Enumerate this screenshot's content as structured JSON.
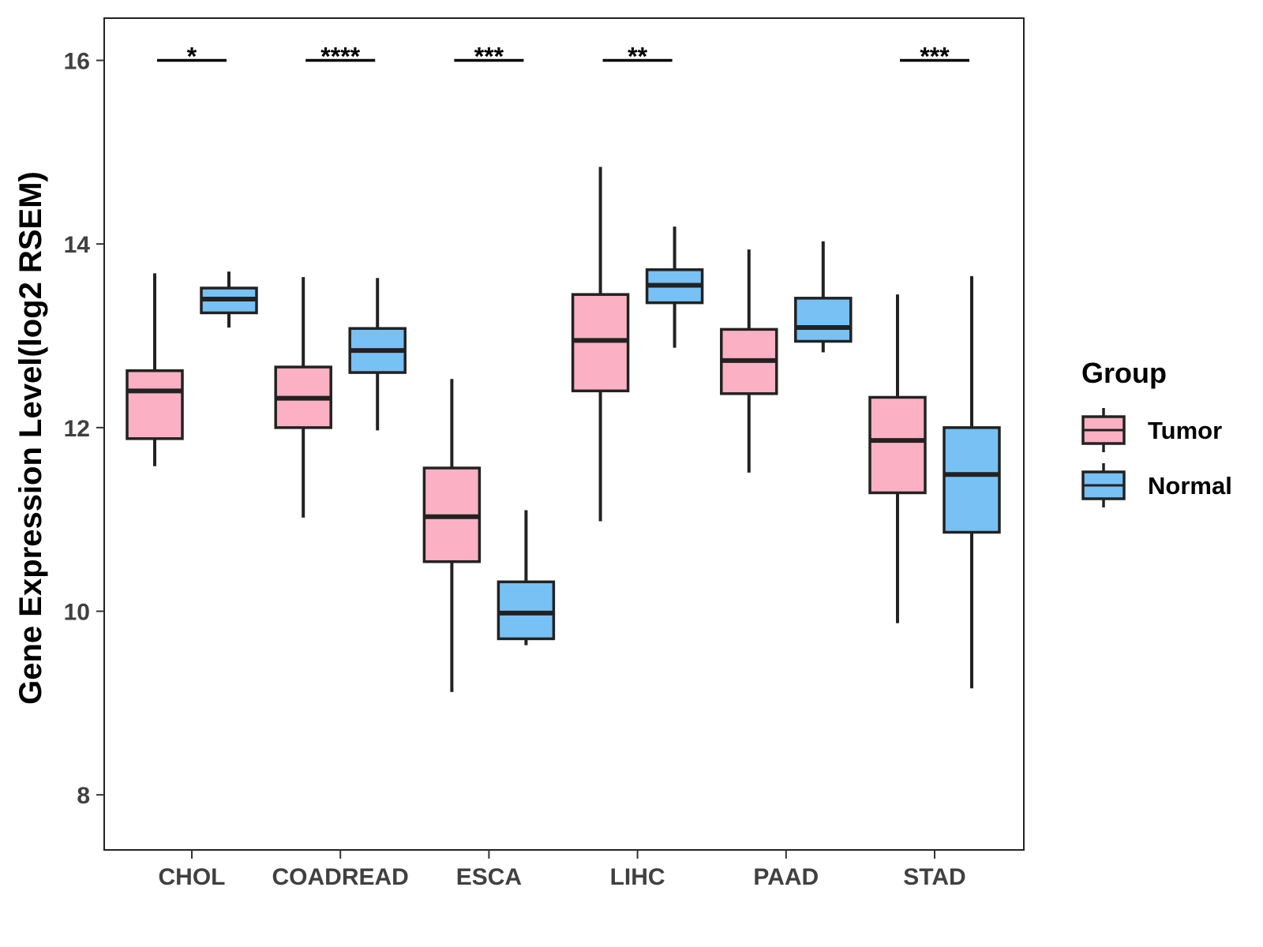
{
  "chart_data": {
    "type": "boxplot",
    "ylabel": "Gene Expression Level(log2 RSEM)",
    "xlabel": "",
    "ylim": [
      7.4,
      16.46
    ],
    "yticks": [
      8,
      10,
      12,
      14,
      16
    ],
    "categories": [
      "CHOL",
      "COADREAD",
      "ESCA",
      "LIHC",
      "PAAD",
      "STAD"
    ],
    "legend": {
      "title": "Group",
      "position": "right",
      "entries": [
        {
          "name": "Tumor",
          "color": "#FBB1C3"
        },
        {
          "name": "Normal",
          "color": "#77C1F5"
        }
      ]
    },
    "series": [
      {
        "name": "Tumor",
        "color": "#FBB1C3",
        "boxes": [
          {
            "min": 11.58,
            "q1": 11.88,
            "median": 12.4,
            "q3": 12.62,
            "max": 13.68
          },
          {
            "min": 11.02,
            "q1": 12.0,
            "median": 12.32,
            "q3": 12.66,
            "max": 13.64
          },
          {
            "min": 9.12,
            "q1": 10.54,
            "median": 11.03,
            "q3": 11.56,
            "max": 12.53
          },
          {
            "min": 10.98,
            "q1": 12.4,
            "median": 12.95,
            "q3": 13.45,
            "max": 14.84
          },
          {
            "min": 11.51,
            "q1": 12.37,
            "median": 12.73,
            "q3": 13.07,
            "max": 13.94
          },
          {
            "min": 9.87,
            "q1": 11.29,
            "median": 11.86,
            "q3": 12.33,
            "max": 13.45
          }
        ]
      },
      {
        "name": "Normal",
        "color": "#77C1F5",
        "boxes": [
          {
            "min": 13.09,
            "q1": 13.25,
            "median": 13.4,
            "q3": 13.52,
            "max": 13.7
          },
          {
            "min": 11.97,
            "q1": 12.6,
            "median": 12.84,
            "q3": 13.08,
            "max": 13.63
          },
          {
            "min": 9.63,
            "q1": 9.7,
            "median": 9.98,
            "q3": 10.32,
            "max": 11.1
          },
          {
            "min": 12.87,
            "q1": 13.36,
            "median": 13.55,
            "q3": 13.72,
            "max": 14.19
          },
          {
            "min": 12.82,
            "q1": 12.94,
            "median": 13.09,
            "q3": 13.41,
            "max": 14.03
          },
          {
            "min": 9.16,
            "q1": 10.86,
            "median": 11.49,
            "q3": 12.0,
            "max": 13.65
          }
        ]
      }
    ],
    "significance": [
      {
        "category": "CHOL",
        "label": "*",
        "y": 16.0
      },
      {
        "category": "COADREAD",
        "label": "****",
        "y": 16.0
      },
      {
        "category": "ESCA",
        "label": "***",
        "y": 16.0
      },
      {
        "category": "LIHC",
        "label": "**",
        "y": 16.0
      },
      {
        "category": "PAAD",
        "label": "",
        "y": 16.0
      },
      {
        "category": "STAD",
        "label": "***",
        "y": 16.0
      }
    ],
    "grid": false
  }
}
